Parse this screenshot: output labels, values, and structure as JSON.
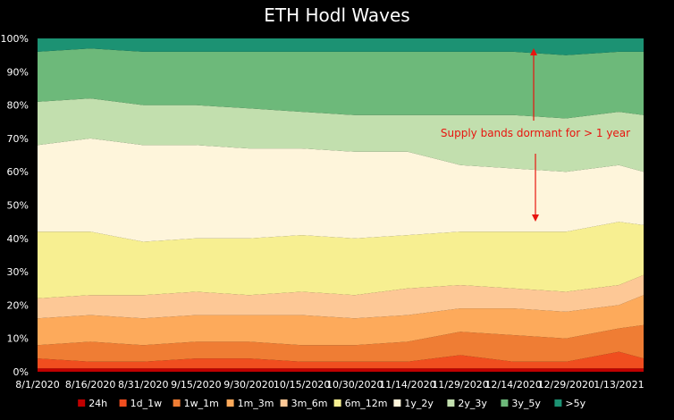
{
  "chart_data": {
    "type": "area",
    "stacked": true,
    "title": "ETH Hodl Waves",
    "xlabel": "",
    "ylabel": "",
    "ylim": [
      0,
      100
    ],
    "y_ticks": [
      "0%",
      "10%",
      "20%",
      "30%",
      "40%",
      "50%",
      "60%",
      "70%",
      "80%",
      "90%",
      "100%"
    ],
    "x_ticks": [
      "8/1/2020",
      "8/16/2020",
      "8/31/2020",
      "9/15/2020",
      "9/30/2020",
      "10/15/2020",
      "10/30/2020",
      "11/14/2020",
      "11/29/2020",
      "12/14/2020",
      "12/29/2020",
      "1/13/2021"
    ],
    "x": [
      "2020-08-01",
      "2020-08-16",
      "2020-08-31",
      "2020-09-15",
      "2020-09-30",
      "2020-10-15",
      "2020-10-30",
      "2020-11-14",
      "2020-11-29",
      "2020-12-14",
      "2020-12-29",
      "2021-01-13",
      "2021-01-20"
    ],
    "series": [
      {
        "name": "24h",
        "color": "#c00000",
        "values": [
          1,
          1,
          1,
          1,
          1,
          1,
          1,
          1,
          1,
          1,
          1,
          1,
          1
        ]
      },
      {
        "name": "1d_1w",
        "color": "#f04e1f",
        "values": [
          3,
          2,
          2,
          3,
          3,
          2,
          2,
          2,
          4,
          2,
          2,
          5,
          3
        ]
      },
      {
        "name": "1w_1m",
        "color": "#ef7d34",
        "values": [
          4,
          6,
          5,
          5,
          5,
          5,
          5,
          6,
          7,
          8,
          7,
          7,
          10
        ]
      },
      {
        "name": "1m_3m",
        "color": "#fdaa5b",
        "values": [
          8,
          8,
          8,
          8,
          8,
          9,
          8,
          8,
          7,
          8,
          8,
          7,
          9
        ]
      },
      {
        "name": "3m_6m",
        "color": "#fdc896",
        "values": [
          6,
          6,
          7,
          7,
          6,
          7,
          7,
          8,
          7,
          6,
          6,
          6,
          6
        ]
      },
      {
        "name": "6m_12m",
        "color": "#f7ef91",
        "values": [
          20,
          19,
          16,
          16,
          17,
          17,
          17,
          16,
          16,
          17,
          18,
          19,
          15
        ]
      },
      {
        "name": "1y_2y",
        "color": "#fef5db",
        "values": [
          26,
          28,
          29,
          28,
          27,
          26,
          26,
          25,
          20,
          19,
          18,
          17,
          16
        ]
      },
      {
        "name": "2y_3y",
        "color": "#c2dfae",
        "values": [
          13,
          12,
          12,
          12,
          12,
          11,
          11,
          11,
          15,
          16,
          16,
          16,
          17
        ]
      },
      {
        "name": "3y_5y",
        "color": "#6db97a",
        "values": [
          15,
          15,
          16,
          16,
          17,
          18,
          19,
          19,
          19,
          19,
          19,
          18,
          19
        ]
      },
      {
        "name": ">5y",
        "color": "#1c9273",
        "values": [
          4,
          3,
          4,
          4,
          4,
          4,
          4,
          4,
          4,
          4,
          5,
          4,
          4
        ]
      }
    ],
    "annotation": {
      "text": "Supply bands dormant for > 1 year",
      "color": "#e8150f"
    },
    "grid": false,
    "legend_position": "bottom"
  }
}
